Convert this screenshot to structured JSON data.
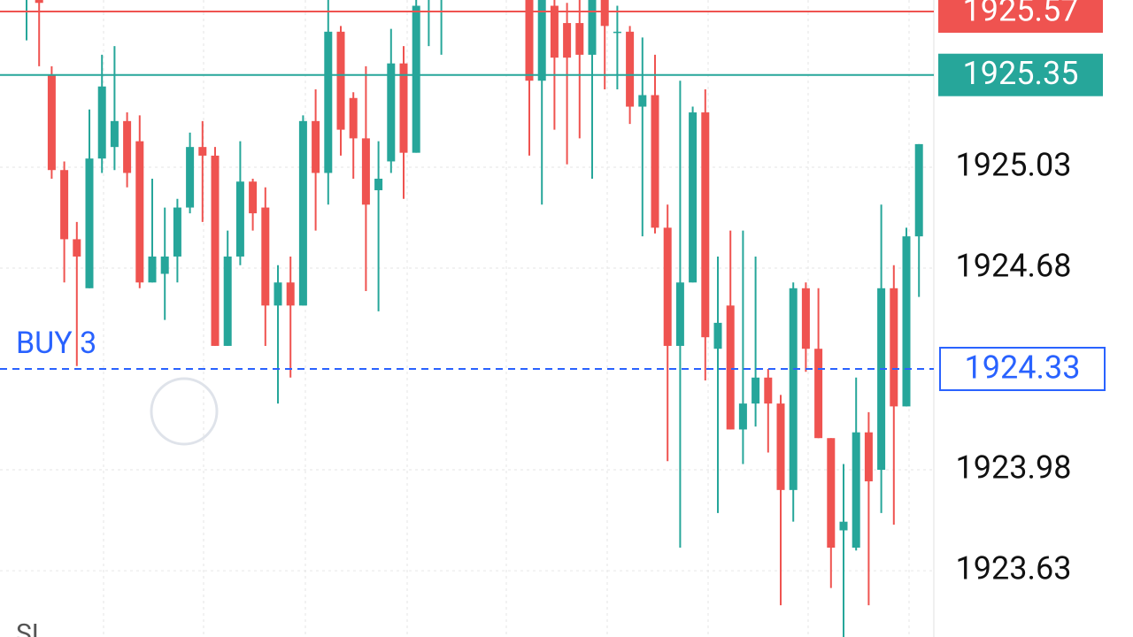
{
  "chart_data": {
    "type": "candlestick",
    "categories": [
      null,
      null,
      null,
      null,
      null,
      null,
      null,
      null,
      null,
      null,
      null,
      null,
      null,
      null,
      null,
      null,
      null,
      null,
      null,
      null,
      null,
      null,
      null,
      null,
      null,
      null,
      null,
      null,
      null,
      null,
      null,
      null,
      null,
      null,
      null,
      null,
      null,
      null,
      null,
      null,
      null,
      null,
      null,
      null,
      null,
      null,
      null,
      null,
      null,
      null,
      null,
      null,
      null,
      null,
      null,
      null,
      null,
      null,
      null,
      null,
      null,
      null,
      null,
      null,
      null,
      null,
      null,
      null,
      null,
      null,
      null,
      null
    ],
    "open": [
      1925.62,
      1925.65,
      1925.35,
      1925.02,
      1924.78,
      1924.61,
      1925.06,
      1925.1,
      1925.19,
      1925.12,
      1924.63,
      1924.66,
      1924.72,
      1924.89,
      1925.1,
      1925.07,
      1924.41,
      1924.72,
      1924.98,
      1924.89,
      1924.55,
      1924.63,
      1924.55,
      1925.19,
      1925.01,
      1925.5,
      1925.27,
      1925.13,
      1924.95,
      1925.05,
      1925.39,
      1925.08,
      1925.62,
      1925.63,
      null,
      null,
      null,
      null,
      null,
      null,
      1925.65,
      1925.33,
      1925.59,
      1925.53,
      1925.53,
      1925.42,
      1925.65,
      1925.5,
      1925.5,
      1925.24,
      1925.28,
      1924.82,
      1924.41,
      1924.63,
      1925.22,
      1924.4,
      1924.55,
      1924.12,
      1924.21,
      1924.3,
      1924.21,
      1923.91,
      1924.61,
      1924.4,
      1924.09,
      1923.77,
      1923.71,
      1924.11,
      1923.98,
      1924.61,
      1924.2,
      1924.79
    ],
    "high": [
      1925.7,
      1925.7,
      1925.38,
      1925.05,
      1924.84,
      1925.23,
      1925.42,
      1925.45,
      1925.22,
      1925.21,
      1924.99,
      1924.89,
      1924.92,
      1925.15,
      1925.19,
      1925.1,
      1924.81,
      1925.12,
      1924.99,
      1924.96,
      1924.69,
      1924.72,
      1925.21,
      1925.3,
      1925.61,
      1925.52,
      1925.29,
      1925.38,
      1925.12,
      1925.51,
      1925.45,
      1925.61,
      1925.7,
      1925.7,
      null,
      null,
      null,
      null,
      null,
      null,
      1925.7,
      1925.7,
      1925.62,
      1925.6,
      1925.62,
      1925.7,
      1925.7,
      1925.59,
      1925.52,
      1925.48,
      1925.42,
      1924.9,
      1925.33,
      1925.24,
      1925.3,
      1924.72,
      1924.81,
      1924.81,
      1924.72,
      1924.33,
      1924.24,
      1924.63,
      1924.63,
      1924.61,
      1924.09,
      1924.0,
      1924.3,
      1924.18,
      1924.9,
      1924.69,
      1924.82,
      1925.11
    ],
    "low": [
      1925.47,
      1925.38,
      1924.99,
      1924.63,
      1924.34,
      1924.61,
      1925.01,
      1925.02,
      1924.96,
      1924.61,
      1924.63,
      1924.5,
      1924.63,
      1924.87,
      1924.84,
      1924.41,
      1924.41,
      1924.69,
      1924.81,
      1924.41,
      1924.21,
      1924.3,
      1924.55,
      1924.81,
      1924.9,
      1925.07,
      1924.99,
      1924.6,
      1924.53,
      1925.01,
      1924.92,
      1925.08,
      1925.45,
      1925.42,
      null,
      null,
      null,
      null,
      null,
      null,
      1925.07,
      1924.9,
      1925.16,
      1925.04,
      1925.13,
      1924.99,
      1925.3,
      1925.3,
      1925.18,
      1924.79,
      1924.8,
      1924.01,
      1923.71,
      1924.63,
      1924.29,
      1923.83,
      1924.12,
      1924.0,
      1924.13,
      1924.04,
      1923.51,
      1923.8,
      1924.32,
      1924.09,
      1923.57,
      1923.4,
      1923.7,
      1923.51,
      1923.83,
      1923.79,
      1924.2,
      1924.58
    ],
    "close": [
      1925.65,
      1925.6,
      1925.02,
      1924.78,
      1924.72,
      1925.06,
      1925.31,
      1925.19,
      1925.01,
      1924.63,
      1924.72,
      1924.72,
      1924.89,
      1925.1,
      1925.07,
      1924.41,
      1924.72,
      1924.98,
      1924.87,
      1924.55,
      1924.63,
      1924.55,
      1925.19,
      1925.01,
      1925.5,
      1925.16,
      1925.13,
      1924.9,
      1924.99,
      1925.39,
      1925.08,
      1925.59,
      1925.65,
      1925.66,
      null,
      null,
      null,
      null,
      null,
      null,
      1925.33,
      1925.65,
      1925.41,
      1925.41,
      1925.42,
      1925.65,
      1925.52,
      1925.5,
      1925.24,
      1925.28,
      1924.82,
      1924.41,
      1924.63,
      1925.22,
      1924.44,
      1924.49,
      1924.12,
      1924.21,
      1924.3,
      1924.21,
      1923.91,
      1924.61,
      1924.4,
      1924.09,
      1923.71,
      1923.8,
      1924.11,
      1923.94,
      1924.61,
      1924.2,
      1924.79,
      1925.11
    ],
    "up_color": "#26a69a",
    "down_color": "#ef5350",
    "ylim": [
      1923.4,
      1925.61
    ],
    "yticks": [
      1923.63,
      1923.98,
      1924.68,
      1925.03
    ],
    "grid": true,
    "price_lines": [
      {
        "value": 1925.57,
        "color": "#ef5350",
        "style": "solid"
      },
      {
        "value": 1925.35,
        "color": "#26a69a",
        "style": "solid"
      },
      {
        "name": "BUY 3",
        "value": 1924.33,
        "color": "#2962ff",
        "style": "dashed"
      }
    ],
    "annotation": "SL"
  }
}
